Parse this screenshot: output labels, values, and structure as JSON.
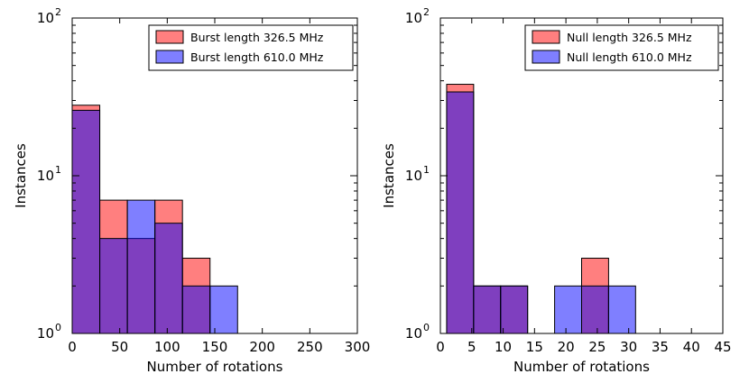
{
  "chart_data": [
    {
      "type": "bar",
      "title": "",
      "xlabel": "Number of rotations",
      "ylabel": "Instances",
      "yscale": "log",
      "ylim": [
        1,
        100
      ],
      "xlim": [
        0,
        300
      ],
      "xticks": [
        "0",
        "50",
        "100",
        "150",
        "200",
        "250",
        "300"
      ],
      "xtick_values": [
        0,
        50,
        100,
        150,
        200,
        250,
        300
      ],
      "yticks": [
        {
          "value": 1,
          "base": "10",
          "exp": "0"
        },
        {
          "value": 10,
          "base": "10",
          "exp": "1"
        },
        {
          "value": 100,
          "base": "10",
          "exp": "2"
        }
      ],
      "bin_edges": [
        0,
        29,
        58,
        87,
        116,
        145,
        174
      ],
      "legend_position": "top-right",
      "series": [
        {
          "name": "Burst length 326.5 MHz",
          "color": "#ff0000",
          "values": [
            28,
            7,
            4,
            7,
            3,
            0
          ]
        },
        {
          "name": "Burst length 610.0 MHz",
          "color": "#0000ff",
          "values": [
            26,
            4,
            7,
            5,
            2,
            2
          ]
        }
      ]
    },
    {
      "type": "bar",
      "title": "",
      "xlabel": "Number of rotations",
      "ylabel": "Instances",
      "yscale": "log",
      "ylim": [
        1,
        100
      ],
      "xlim": [
        0,
        45
      ],
      "xticks": [
        "0",
        "5",
        "10",
        "15",
        "20",
        "25",
        "30",
        "35",
        "40",
        "45"
      ],
      "xtick_values": [
        0,
        5,
        10,
        15,
        20,
        25,
        30,
        35,
        40,
        45
      ],
      "yticks": [
        {
          "value": 1,
          "base": "10",
          "exp": "0"
        },
        {
          "value": 10,
          "base": "10",
          "exp": "1"
        },
        {
          "value": 100,
          "base": "10",
          "exp": "2"
        }
      ],
      "bin_edges": [
        1,
        5.3,
        9.6,
        13.9,
        18.2,
        22.5,
        26.8,
        31.1
      ],
      "legend_position": "top-right",
      "series": [
        {
          "name": "Null length 326.5 MHz",
          "color": "#ff0000",
          "values": [
            38,
            2,
            2,
            0,
            0,
            3,
            0
          ]
        },
        {
          "name": "Null length 610.0 MHz",
          "color": "#0000ff",
          "values": [
            34,
            2,
            2,
            0,
            2,
            2,
            2
          ]
        }
      ]
    }
  ]
}
